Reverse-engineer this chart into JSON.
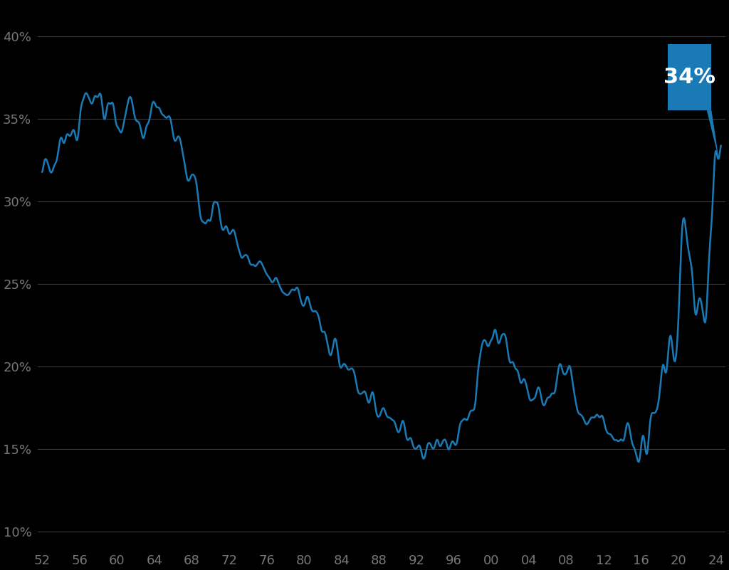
{
  "background_color": "#000000",
  "line_color": "#1a7ab5",
  "line_width": 1.8,
  "callout_color": "#1a7ab5",
  "callout_text": "34%",
  "callout_text_color": "#ffffff",
  "yticks": [
    0.1,
    0.15,
    0.2,
    0.25,
    0.3,
    0.35,
    0.4
  ],
  "ytick_labels": [
    "10%",
    "15%",
    "20%",
    "25%",
    "30%",
    "35%",
    "40%"
  ],
  "xticks": [
    1952,
    1956,
    1960,
    1964,
    1968,
    1972,
    1976,
    1980,
    1984,
    1988,
    1992,
    1996,
    2000,
    2004,
    2008,
    2012,
    2016,
    2020,
    2024
  ],
  "xtick_labels": [
    "52",
    "56",
    "60",
    "64",
    "68",
    "72",
    "76",
    "80",
    "84",
    "88",
    "92",
    "96",
    "00",
    "04",
    "08",
    "12",
    "16",
    "20",
    "24"
  ],
  "ylim": [
    0.09,
    0.42
  ],
  "xlim": [
    1951.5,
    2025.0
  ],
  "tick_color": "#777777",
  "tick_fontsize": 13,
  "grid_color": "#3a3a3a",
  "grid_linewidth": 0.8
}
